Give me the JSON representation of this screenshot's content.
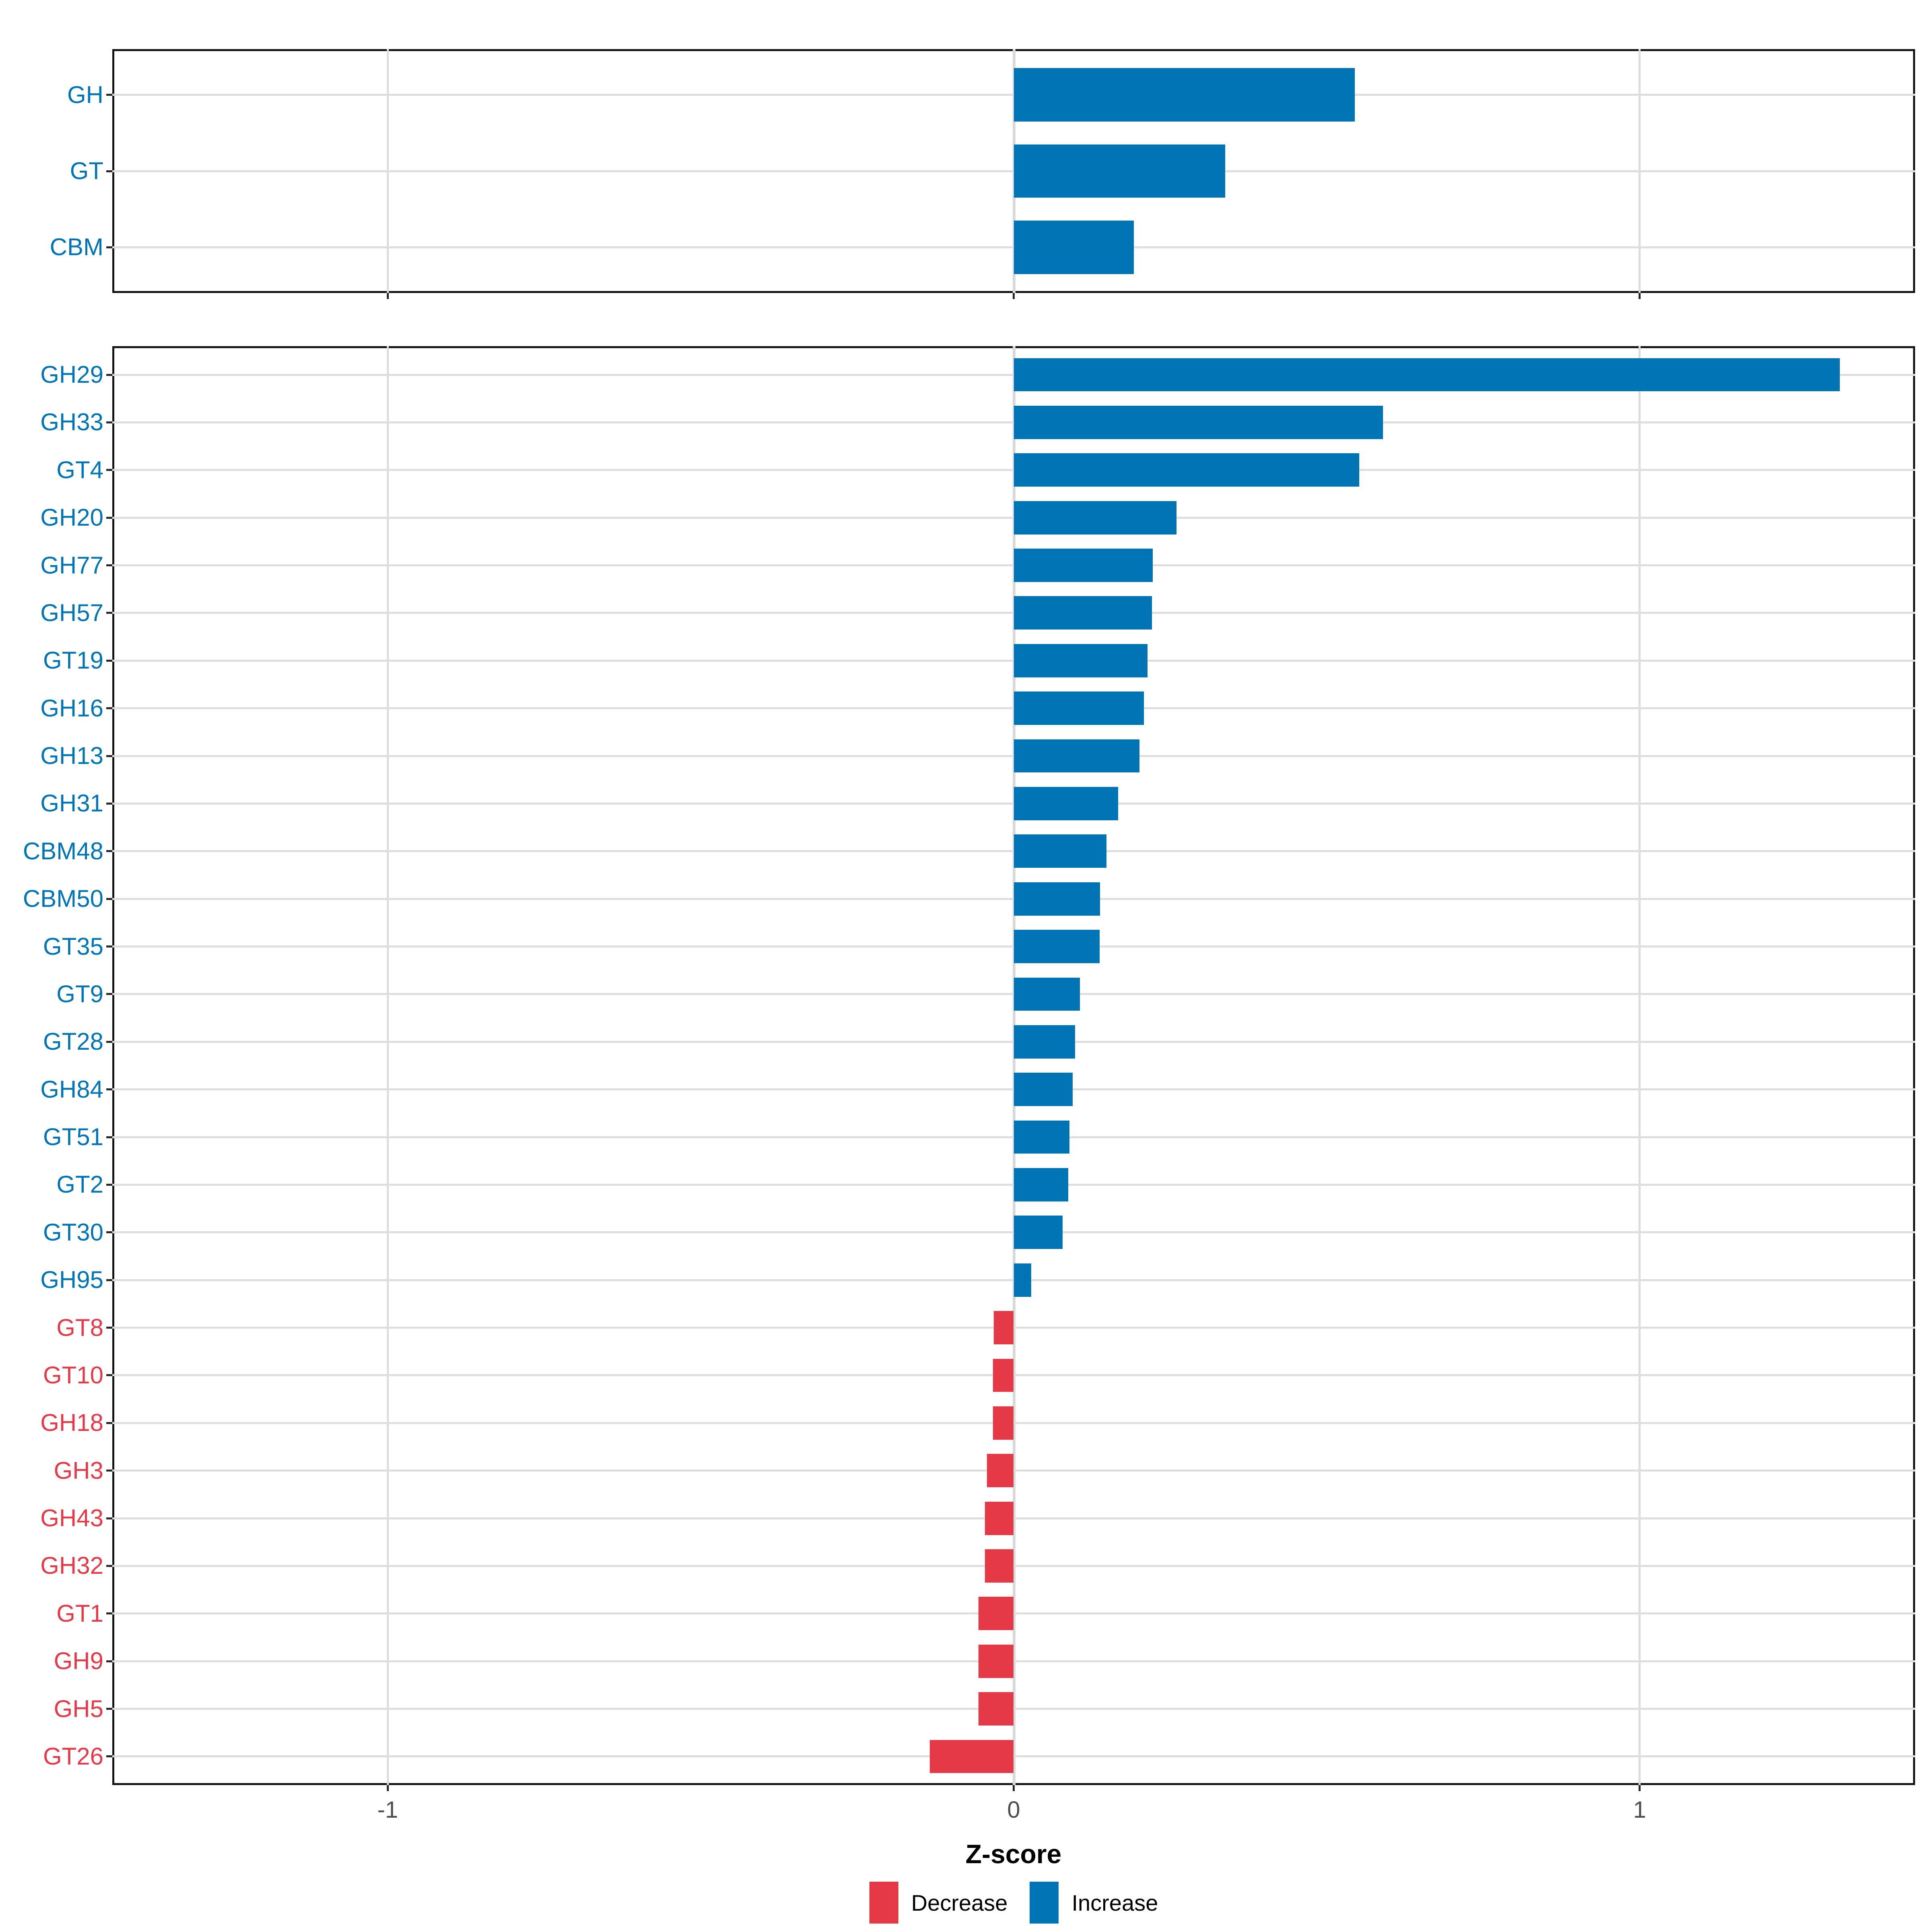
{
  "chart_data": {
    "type": "bar",
    "orientation": "horizontal",
    "title": "",
    "xlabel": "Z-score",
    "ylabel": "",
    "xlim": [
      -1.44,
      1.44
    ],
    "x_ticks": [
      {
        "value": -1,
        "label": "-1"
      },
      {
        "value": 0,
        "label": "0"
      },
      {
        "value": 1,
        "label": "1"
      }
    ],
    "grid": true,
    "legend_position": "bottom",
    "legend": [
      {
        "key": "decrease",
        "label": "Decrease",
        "color": "#E63948"
      },
      {
        "key": "increase",
        "label": "Increase",
        "color": "#0074B5"
      }
    ],
    "panels": [
      {
        "name": "summary",
        "categories": [
          "GH",
          "GT",
          "CBM"
        ],
        "values": [
          0.545,
          0.338,
          0.192
        ],
        "directions": [
          "increase",
          "increase",
          "increase"
        ]
      },
      {
        "name": "families",
        "categories": [
          "GH29",
          "GH33",
          "GT4",
          "GH20",
          "GH77",
          "GH57",
          "GT19",
          "GH16",
          "GH13",
          "GH31",
          "CBM48",
          "CBM50",
          "GT35",
          "GT9",
          "GT28",
          "GH84",
          "GT51",
          "GT2",
          "GT30",
          "GH95",
          "GT8",
          "GT10",
          "GH18",
          "GH3",
          "GH43",
          "GH32",
          "GT1",
          "GH9",
          "GH5",
          "GT26"
        ],
        "values": [
          1.32,
          0.59,
          0.552,
          0.26,
          0.222,
          0.221,
          0.214,
          0.208,
          0.201,
          0.167,
          0.148,
          0.138,
          0.137,
          0.106,
          0.098,
          0.094,
          0.089,
          0.087,
          0.078,
          0.028,
          -0.032,
          -0.033,
          -0.033,
          -0.043,
          -0.046,
          -0.046,
          -0.056,
          -0.056,
          -0.056,
          -0.134
        ],
        "directions": [
          "increase",
          "increase",
          "increase",
          "increase",
          "increase",
          "increase",
          "increase",
          "increase",
          "increase",
          "increase",
          "increase",
          "increase",
          "increase",
          "increase",
          "increase",
          "increase",
          "increase",
          "increase",
          "increase",
          "increase",
          "decrease",
          "decrease",
          "decrease",
          "decrease",
          "decrease",
          "decrease",
          "decrease",
          "decrease",
          "decrease",
          "decrease"
        ]
      }
    ],
    "colors": {
      "increase": "#0074B5",
      "decrease": "#E63948",
      "tick_label": "#4D4D4D",
      "grid": "#DEDEDE",
      "panel_border": "#141414"
    }
  }
}
